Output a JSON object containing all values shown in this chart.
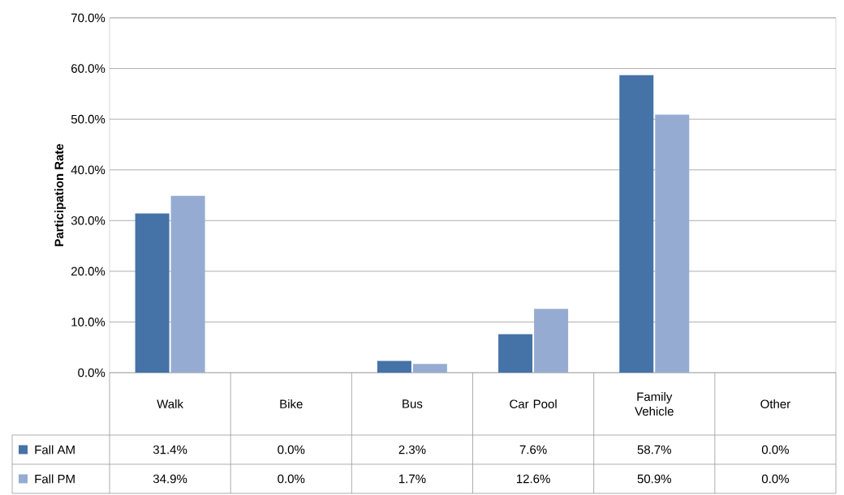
{
  "chart_data": {
    "type": "bar",
    "ylabel": "Participation Rate",
    "categories": [
      "Walk",
      "Bike",
      "Bus",
      "Car Pool",
      "Family Vehicle",
      "Other"
    ],
    "series": [
      {
        "name": "Fall AM",
        "color": "#4572a7",
        "values": [
          31.4,
          0.0,
          2.3,
          7.6,
          58.7,
          0.0
        ],
        "value_labels": [
          "31.4%",
          "0.0%",
          "2.3%",
          "7.6%",
          "58.7%",
          "0.0%"
        ]
      },
      {
        "name": "Fall PM",
        "color": "#95abd2",
        "values": [
          34.9,
          0.0,
          1.7,
          12.6,
          50.9,
          0.0
        ],
        "value_labels": [
          "34.9%",
          "0.0%",
          "1.7%",
          "12.6%",
          "50.9%",
          "0.0%"
        ]
      }
    ],
    "ylim": [
      0,
      70
    ],
    "yticks": [
      {
        "value": 0,
        "label": "0.0%"
      },
      {
        "value": 10,
        "label": "10.0%"
      },
      {
        "value": 20,
        "label": "20.0%"
      },
      {
        "value": 30,
        "label": "30.0%"
      },
      {
        "value": 40,
        "label": "40.0%"
      },
      {
        "value": 50,
        "label": "50.0%"
      },
      {
        "value": 60,
        "label": "60.0%"
      },
      {
        "value": 70,
        "label": "70.0%"
      }
    ],
    "grid": "y",
    "legend": "bottom"
  }
}
